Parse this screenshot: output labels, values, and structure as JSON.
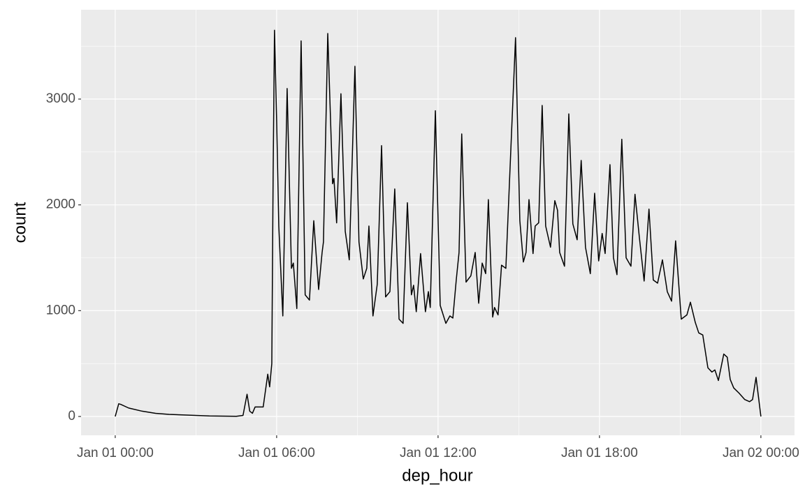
{
  "chart_data": {
    "type": "line",
    "color": "#000000",
    "x_label": "dep_hour",
    "y_label": "count",
    "x": [
      0,
      0.13,
      0.2,
      0.5,
      1,
      1.5,
      2,
      2.5,
      3,
      3.5,
      4,
      4.5,
      4.75,
      4.9,
      5.0,
      5.1,
      5.2,
      5.5,
      5.67,
      5.74,
      5.82,
      5.87,
      5.92,
      6.0,
      6.08,
      6.23,
      6.39,
      6.55,
      6.62,
      6.75,
      6.91,
      7.06,
      7.22,
      7.38,
      7.56,
      7.69,
      7.74,
      7.9,
      8.08,
      8.13,
      8.23,
      8.39,
      8.55,
      8.7,
      8.91,
      9.06,
      9.22,
      9.35,
      9.43,
      9.58,
      9.74,
      9.9,
      10.05,
      10.21,
      10.39,
      10.55,
      10.7,
      10.86,
      11.01,
      11.09,
      11.19,
      11.35,
      11.53,
      11.64,
      11.71,
      11.9,
      12.08,
      12.29,
      12.44,
      12.55,
      12.68,
      12.78,
      12.88,
      13.04,
      13.22,
      13.38,
      13.51,
      13.64,
      13.77,
      13.87,
      14.03,
      14.1,
      14.23,
      14.36,
      14.52,
      14.88,
      15.04,
      15.17,
      15.27,
      15.38,
      15.53,
      15.61,
      15.74,
      15.87,
      16.0,
      16.18,
      16.34,
      16.44,
      16.52,
      16.7,
      16.86,
      17.01,
      17.17,
      17.32,
      17.48,
      17.66,
      17.82,
      17.97,
      18.1,
      18.21,
      18.39,
      18.52,
      18.65,
      18.83,
      18.99,
      19.17,
      19.32,
      19.48,
      19.66,
      19.84,
      20.0,
      20.16,
      20.34,
      20.52,
      20.68,
      20.83,
      21.04,
      21.25,
      21.38,
      21.56,
      21.69,
      21.84,
      22.03,
      22.18,
      22.29,
      22.42,
      22.62,
      22.75,
      22.86,
      22.99,
      23.19,
      23.4,
      23.58,
      23.69,
      23.82,
      24.0
    ],
    "values": [
      0,
      120,
      115,
      80,
      50,
      30,
      20,
      15,
      10,
      5,
      3,
      2,
      10,
      210,
      50,
      30,
      90,
      90,
      400,
      280,
      500,
      2300,
      3650,
      2800,
      1800,
      950,
      3100,
      1400,
      1450,
      1020,
      3550,
      1150,
      1100,
      1850,
      1200,
      1550,
      1650,
      3620,
      2200,
      2250,
      1830,
      3050,
      1750,
      1480,
      3310,
      1650,
      1300,
      1400,
      1800,
      950,
      1250,
      2560,
      1130,
      1180,
      2150,
      920,
      880,
      2020,
      1150,
      1240,
      990,
      1540,
      990,
      1180,
      1030,
      2890,
      1050,
      880,
      950,
      930,
      1300,
      1550,
      2670,
      1270,
      1330,
      1550,
      1070,
      1450,
      1350,
      2050,
      940,
      1030,
      960,
      1430,
      1400,
      3580,
      1850,
      1460,
      1550,
      2050,
      1540,
      1800,
      1830,
      2940,
      1800,
      1600,
      2040,
      1950,
      1550,
      1420,
      2860,
      1820,
      1670,
      2420,
      1600,
      1350,
      2110,
      1470,
      1730,
      1540,
      2380,
      1500,
      1340,
      2620,
      1500,
      1420,
      2100,
      1700,
      1280,
      1960,
      1290,
      1260,
      1480,
      1180,
      1090,
      1660,
      920,
      960,
      1080,
      890,
      790,
      770,
      460,
      420,
      440,
      340,
      590,
      560,
      350,
      270,
      220,
      160,
      140,
      160,
      370,
      0
    ],
    "xlim": [
      -1.27,
      25.25
    ],
    "ylim": [
      -178,
      3844
    ],
    "xticks": [
      {
        "value": 0,
        "label": "Jan 01 00:00"
      },
      {
        "value": 6,
        "label": "Jan 01 06:00"
      },
      {
        "value": 12,
        "label": "Jan 01 12:00"
      },
      {
        "value": 18,
        "label": "Jan 01 18:00"
      },
      {
        "value": 24,
        "label": "Jan 02 00:00"
      }
    ],
    "yticks": [
      0,
      1000,
      2000,
      3000
    ],
    "x_minor": [
      3,
      9,
      15,
      21
    ],
    "y_minor": [
      500,
      1500,
      2500,
      3500
    ],
    "grid": true
  }
}
